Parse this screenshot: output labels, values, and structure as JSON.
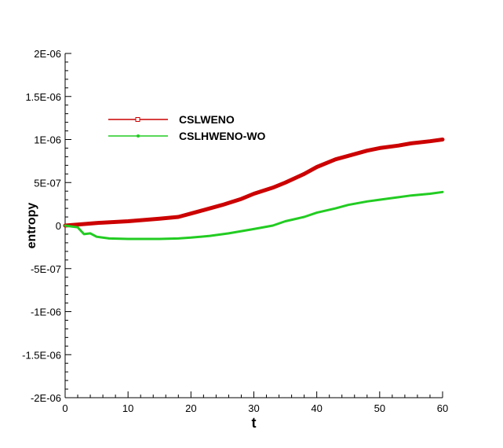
{
  "chart_data": {
    "type": "line",
    "title": "",
    "xlabel": "t",
    "ylabel": "entropy",
    "xlim": [
      0,
      60
    ],
    "ylim": [
      -2e-06,
      2e-06
    ],
    "x_ticks": [
      0,
      10,
      20,
      30,
      40,
      50,
      60
    ],
    "x_tick_labels": [
      "0",
      "10",
      "20",
      "30",
      "40",
      "50",
      "60"
    ],
    "y_ticks": [
      -2e-06,
      -1.5e-06,
      -1e-06,
      -5e-07,
      0,
      5e-07,
      1e-06,
      1.5e-06,
      2e-06
    ],
    "y_tick_labels": [
      "-2E-06",
      "-1.5E-06",
      "-1E-06",
      "-5E-07",
      "0",
      "5E-07",
      "1E-06",
      "1.5E-06",
      "2E-06"
    ],
    "grid": false,
    "legend_position": "top-left",
    "series": [
      {
        "name": "CSLWENO",
        "color": "#cc0000",
        "x": [
          0,
          5,
          10,
          15,
          18,
          20,
          22,
          25,
          28,
          30,
          33,
          35,
          38,
          40,
          43,
          45,
          48,
          50,
          53,
          55,
          58,
          60
        ],
        "y": [
          0,
          3e-08,
          5e-08,
          8e-08,
          1e-07,
          1.4e-07,
          1.8e-07,
          2.4e-07,
          3.1e-07,
          3.7e-07,
          4.4e-07,
          5e-07,
          6e-07,
          6.8e-07,
          7.7e-07,
          8.1e-07,
          8.7e-07,
          9e-07,
          9.3e-07,
          9.55e-07,
          9.8e-07,
          1e-06
        ]
      },
      {
        "name": "CSLHWENO-WO",
        "color": "#22cc22",
        "x": [
          0,
          1,
          2,
          3,
          4,
          5,
          7,
          10,
          15,
          18,
          20,
          23,
          26,
          30,
          33,
          35,
          38,
          40,
          43,
          45,
          48,
          50,
          53,
          55,
          58,
          60
        ],
        "y": [
          0,
          -1e-08,
          -2e-08,
          -1e-07,
          -9e-08,
          -1.3e-07,
          -1.5e-07,
          -1.55e-07,
          -1.55e-07,
          -1.5e-07,
          -1.4e-07,
          -1.2e-07,
          -9e-08,
          -4e-08,
          0,
          5e-08,
          1e-07,
          1.5e-07,
          2e-07,
          2.4e-07,
          2.8e-07,
          3e-07,
          3.3e-07,
          3.5e-07,
          3.7e-07,
          3.9e-07
        ]
      }
    ]
  }
}
